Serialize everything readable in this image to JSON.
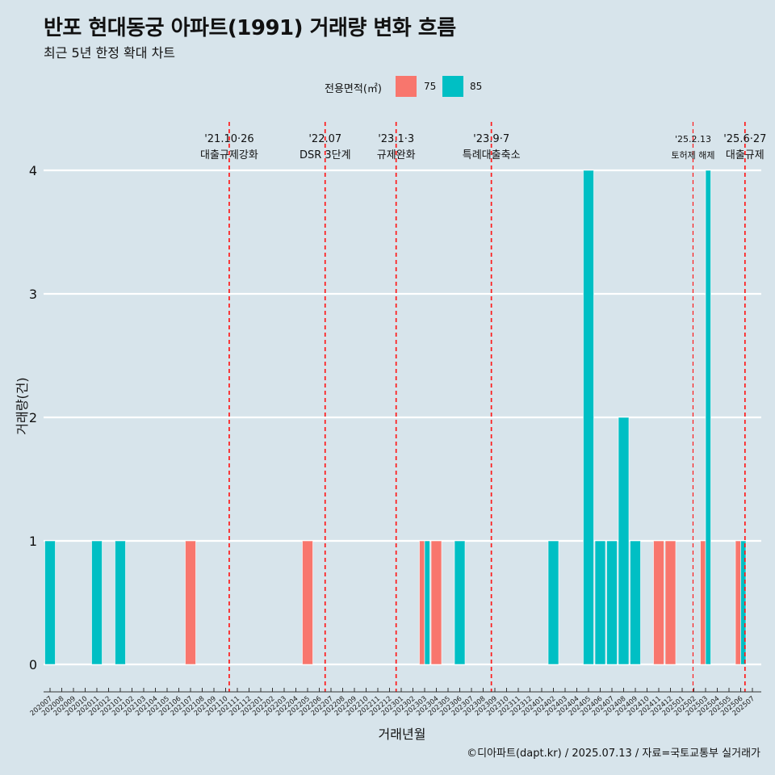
{
  "header": {
    "title": "반포 현대동궁 아파트(1991) 거래량 변화 흐름",
    "subtitle": "최근 5년 한정 확대 차트"
  },
  "legend": {
    "title": "전용면적(㎡)",
    "items": [
      {
        "label": "75",
        "color": "#f8766d"
      },
      {
        "label": "85",
        "color": "#00bfc4"
      }
    ]
  },
  "caption": "©디아파트(dapt.kr) / 2025.07.13 / 자료=국토교통부 실거래가",
  "chart_data": {
    "type": "bar",
    "xlabel": "거래년월",
    "ylabel": "거래량(건)",
    "ylim": [
      0,
      4
    ],
    "y_ticks": [
      0,
      1,
      2,
      3,
      4
    ],
    "grid": "horizontal",
    "legend_position": "top",
    "categories": [
      "202007",
      "202008",
      "202009",
      "202010",
      "202011",
      "202012",
      "202101",
      "202102",
      "202103",
      "202104",
      "202105",
      "202106",
      "202107",
      "202108",
      "202109",
      "202110",
      "202111",
      "202112",
      "202201",
      "202202",
      "202203",
      "202204",
      "202205",
      "202206",
      "202207",
      "202208",
      "202209",
      "202210",
      "202211",
      "202212",
      "202301",
      "202302",
      "202303",
      "202304",
      "202305",
      "202306",
      "202307",
      "202308",
      "202309",
      "202310",
      "202311",
      "202312",
      "202401",
      "202402",
      "202403",
      "202404",
      "202405",
      "202406",
      "202407",
      "202408",
      "202409",
      "202410",
      "202411",
      "202412",
      "202501",
      "202502",
      "202503",
      "202504",
      "202505",
      "202506",
      "202507"
    ],
    "bars": [
      {
        "month": "202007",
        "series": "85",
        "value": 1
      },
      {
        "month": "202011",
        "series": "85",
        "value": 1
      },
      {
        "month": "202101",
        "series": "85",
        "value": 1
      },
      {
        "month": "202107",
        "series": "75",
        "value": 1
      },
      {
        "month": "202205",
        "series": "75",
        "value": 1
      },
      {
        "month": "202303",
        "series": "75",
        "value": 1
      },
      {
        "month": "202303",
        "series": "85",
        "value": 1
      },
      {
        "month": "202304",
        "series": "75",
        "value": 1
      },
      {
        "month": "202306",
        "series": "85",
        "value": 1
      },
      {
        "month": "202402",
        "series": "85",
        "value": 1
      },
      {
        "month": "202405",
        "series": "85",
        "value": 4
      },
      {
        "month": "202406",
        "series": "85",
        "value": 1
      },
      {
        "month": "202407",
        "series": "85",
        "value": 1
      },
      {
        "month": "202408",
        "series": "85",
        "value": 2
      },
      {
        "month": "202409",
        "series": "85",
        "value": 1
      },
      {
        "month": "202411",
        "series": "75",
        "value": 1
      },
      {
        "month": "202412",
        "series": "75",
        "value": 1
      },
      {
        "month": "202503",
        "series": "75",
        "value": 1
      },
      {
        "month": "202503",
        "series": "85",
        "value": 4
      },
      {
        "month": "202506",
        "series": "75",
        "value": 1
      },
      {
        "month": "202506",
        "series": "85",
        "value": 1
      }
    ],
    "annotations": [
      {
        "date": "2021-10-26",
        "label1": "'21.10·26",
        "label2": "대출규제강화",
        "small": false
      },
      {
        "date": "2022-07-01",
        "label1": "'22.07",
        "label2": "DSR 3단계",
        "small": false
      },
      {
        "date": "2023-01-03",
        "label1": "'23.1·3",
        "label2": "규제완화",
        "small": false
      },
      {
        "date": "2023-09-07",
        "label1": "'23.9·7",
        "label2": "특례대출축소",
        "small": false
      },
      {
        "date": "2025-02-13",
        "label1": "'25.2.13",
        "label2": "토허제 해제",
        "small": true
      },
      {
        "date": "2025-06-27",
        "label1": "'25.6·27",
        "label2": "대출규제",
        "small": false
      }
    ]
  }
}
